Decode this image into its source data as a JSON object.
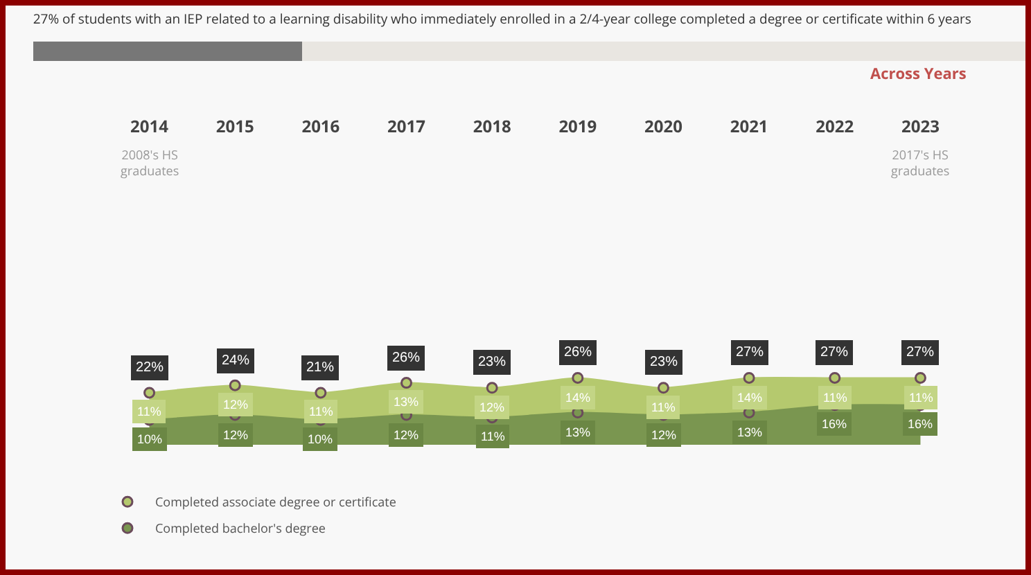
{
  "chart_data": {
    "type": "area",
    "stacked": true,
    "title": "27% of students with an IEP related to a learning disability who immediately enrolled in a 2/4-year college completed a degree or certificate within 6 years",
    "categories": [
      "2014",
      "2015",
      "2016",
      "2017",
      "2018",
      "2019",
      "2020",
      "2021",
      "2022",
      "2023"
    ],
    "series": [
      {
        "name": "Completed bachelor's degree",
        "color": "#7a9650",
        "values": [
          10,
          12,
          10,
          12,
          11,
          13,
          12,
          13,
          16,
          16
        ],
        "value_labels": [
          "10%",
          "12%",
          "10%",
          "12%",
          "11%",
          "13%",
          "12%",
          "13%",
          "16%",
          "16%"
        ]
      },
      {
        "name": "Completed associate degree or certificate",
        "color": "#b5c96e",
        "values": [
          11,
          12,
          11,
          13,
          12,
          14,
          11,
          14,
          11,
          11
        ],
        "value_labels": [
          "11%",
          "12%",
          "11%",
          "13%",
          "12%",
          "14%",
          "11%",
          "14%",
          "11%",
          "11%"
        ]
      }
    ],
    "totals": [
      "22%",
      "24%",
      "21%",
      "26%",
      "23%",
      "26%",
      "23%",
      "27%",
      "27%",
      "27%"
    ],
    "annotations": [
      "2008's HS graduates",
      "2017's HS graduates",
      "Across Years"
    ],
    "marker": "circle",
    "legend": "bottom left",
    "grid": false
  }
}
